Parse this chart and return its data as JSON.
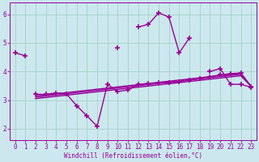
{
  "xlabel": "Windchill (Refroidissement éolien,°C)",
  "background_color": "#cce8ee",
  "grid_color": "#aad4cc",
  "line_color": "#990099",
  "x": [
    0,
    1,
    2,
    3,
    4,
    5,
    6,
    7,
    8,
    9,
    10,
    11,
    12,
    13,
    14,
    15,
    16,
    17,
    18,
    19,
    20,
    21,
    22,
    23
  ],
  "line1": [
    4.65,
    4.55,
    null,
    null,
    null,
    null,
    null,
    null,
    null,
    null,
    4.82,
    null,
    5.55,
    5.65,
    6.05,
    5.9,
    4.65,
    5.18,
    null,
    4.0,
    4.1,
    3.55,
    3.55,
    3.45
  ],
  "line2": [
    null,
    null,
    3.2,
    3.2,
    3.25,
    3.22,
    2.8,
    2.45,
    2.08,
    3.55,
    3.3,
    3.35,
    3.55,
    3.58,
    3.6,
    3.62,
    3.65,
    3.7,
    3.75,
    3.82,
    3.88,
    3.92,
    3.95,
    3.48
  ],
  "line3": [
    null,
    null,
    3.15,
    3.18,
    3.22,
    3.26,
    3.3,
    3.34,
    3.38,
    3.42,
    3.46,
    3.5,
    3.54,
    3.58,
    3.62,
    3.66,
    3.7,
    3.74,
    3.78,
    3.82,
    3.86,
    3.9,
    3.93,
    3.48
  ],
  "line4": [
    null,
    null,
    3.1,
    3.14,
    3.18,
    3.22,
    3.26,
    3.3,
    3.34,
    3.38,
    3.42,
    3.46,
    3.5,
    3.54,
    3.58,
    3.62,
    3.66,
    3.7,
    3.74,
    3.78,
    3.82,
    3.86,
    3.9,
    3.48
  ],
  "line5": [
    null,
    null,
    3.05,
    3.09,
    3.13,
    3.17,
    3.21,
    3.25,
    3.29,
    3.33,
    3.37,
    3.41,
    3.45,
    3.49,
    3.53,
    3.57,
    3.61,
    3.65,
    3.69,
    3.73,
    3.77,
    3.81,
    3.85,
    3.48
  ],
  "ylim": [
    1.6,
    6.4
  ],
  "xlim": [
    -0.5,
    23.5
  ],
  "yticks": [
    2,
    3,
    4,
    5,
    6
  ],
  "xticks": [
    0,
    1,
    2,
    3,
    4,
    5,
    6,
    7,
    8,
    9,
    10,
    11,
    12,
    13,
    14,
    15,
    16,
    17,
    18,
    19,
    20,
    21,
    22,
    23
  ]
}
